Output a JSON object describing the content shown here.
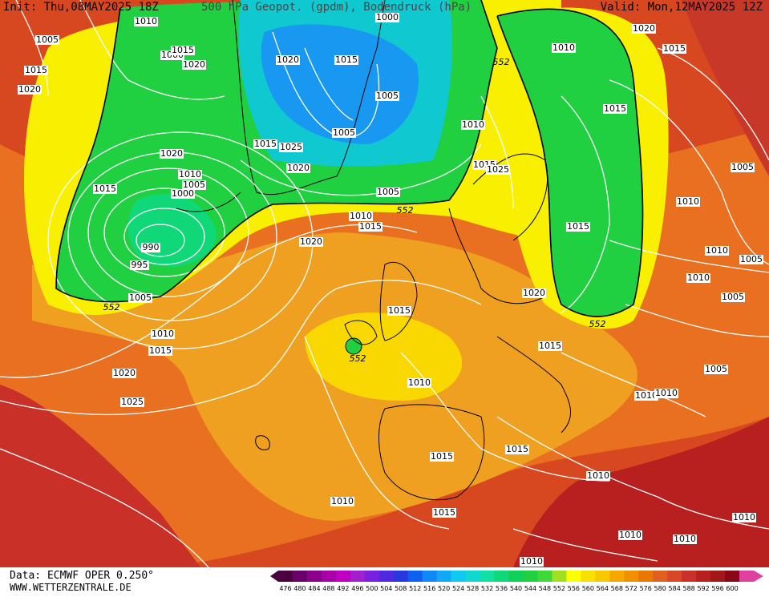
{
  "header": {
    "init": "Init: Thu,08MAY2025 18Z",
    "title": "500 hPa Geopot. (gpdm), Bodendruck (hPa)",
    "valid": "Valid: Mon,12MAY2025 12Z"
  },
  "footer": {
    "data_source": "Data: ECMWF OPER 0.250°",
    "website": "WWW.WETTERZENTRALE.DE"
  },
  "colorbar": {
    "ticks": [
      "476",
      "480",
      "484",
      "488",
      "492",
      "496",
      "500",
      "504",
      "508",
      "512",
      "516",
      "520",
      "524",
      "528",
      "532",
      "536",
      "540",
      "544",
      "548",
      "552",
      "556",
      "560",
      "564",
      "568",
      "572",
      "576",
      "580",
      "584",
      "588",
      "592",
      "596",
      "600"
    ],
    "colors": [
      "#4b0040",
      "#6a006a",
      "#8a008a",
      "#a800a8",
      "#c000c0",
      "#a020d0",
      "#7a20e0",
      "#5028e0",
      "#2838e0",
      "#1060f0",
      "#1088f8",
      "#10a8f8",
      "#10c8f0",
      "#10d8d0",
      "#10e0a0",
      "#10d878",
      "#10d058",
      "#20d040",
      "#40d838",
      "#a0e020",
      "#ffff00",
      "#f8e000",
      "#f8c800",
      "#f4a800",
      "#f09000",
      "#e87800",
      "#e06020",
      "#d84828",
      "#c83028",
      "#b82020",
      "#a01818",
      "#880818",
      "#e040a0"
    ]
  },
  "isobar_labels": [
    "1010",
    "1005",
    "1015",
    "1020",
    "1000",
    "1015",
    "1020",
    "1000",
    "1020",
    "1025",
    "1005",
    "1020",
    "1015",
    "1020",
    "1015",
    "1010",
    "1015",
    "1005",
    "1000",
    "990",
    "995",
    "1005",
    "1010",
    "1015",
    "1020",
    "1025",
    "1015",
    "1010",
    "1015",
    "1005",
    "1020",
    "1010",
    "1005",
    "1010",
    "1015",
    "1015",
    "1015",
    "1020",
    "1025",
    "1015",
    "1015",
    "1010",
    "1010",
    "1005",
    "1010",
    "1010",
    "1010",
    "1010",
    "1005",
    "1015",
    "1005",
    "1010",
    "1005",
    "1020",
    "1015",
    "1010",
    "1015",
    "1010",
    "1010",
    "1010",
    "1010"
  ],
  "geopotential_labels": [
    "552",
    "552",
    "552",
    "552",
    "552"
  ]
}
